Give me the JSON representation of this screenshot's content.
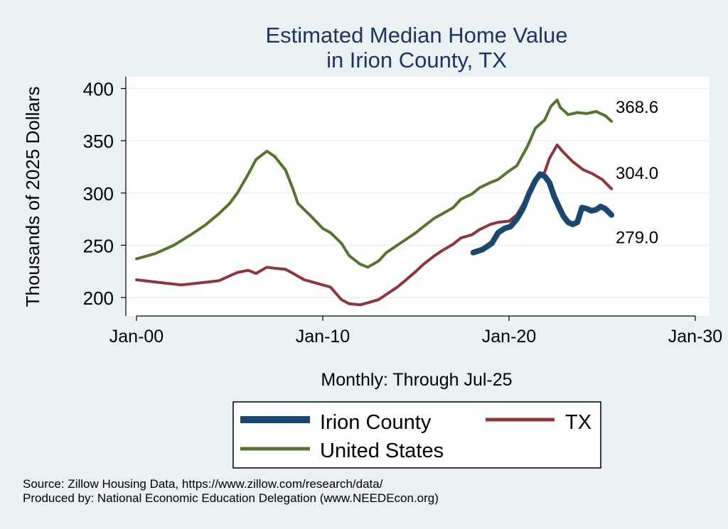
{
  "chart_data": {
    "type": "line",
    "title": [
      "Estimated Median Home Value",
      "in Irion County, TX"
    ],
    "xlabel": "Monthly: Through Jul-25",
    "ylabel": "Thousands of 2025 Dollars",
    "x_range": [
      "2000-01",
      "2030-01"
    ],
    "ylim": [
      195,
      410
    ],
    "x_ticks": [
      "Jan-00",
      "Jan-10",
      "Jan-20",
      "Jan-30"
    ],
    "y_ticks": [
      200,
      250,
      300,
      350,
      400
    ],
    "grid": true,
    "legend_position": "bottom",
    "series": [
      {
        "name": "Irion County",
        "color": "#1a476f",
        "end_label": "279.0",
        "points": [
          [
            "2018-02",
            243
          ],
          [
            "2018-08",
            246
          ],
          [
            "2019-02",
            252
          ],
          [
            "2019-06",
            262
          ],
          [
            "2019-10",
            266
          ],
          [
            "2020-02",
            268
          ],
          [
            "2020-06",
            275
          ],
          [
            "2020-10",
            285
          ],
          [
            "2021-02",
            300
          ],
          [
            "2021-06",
            312
          ],
          [
            "2021-09",
            318
          ],
          [
            "2021-12",
            316
          ],
          [
            "2022-03",
            310
          ],
          [
            "2022-06",
            297
          ],
          [
            "2022-09",
            287
          ],
          [
            "2022-12",
            278
          ],
          [
            "2023-03",
            272
          ],
          [
            "2023-06",
            270
          ],
          [
            "2023-09",
            272
          ],
          [
            "2023-12",
            286
          ],
          [
            "2024-03",
            285
          ],
          [
            "2024-06",
            283
          ],
          [
            "2024-09",
            284
          ],
          [
            "2024-12",
            287
          ],
          [
            "2025-03",
            285
          ],
          [
            "2025-07",
            279
          ]
        ]
      },
      {
        "name": "TX",
        "color": "#90353b",
        "end_label": "304.0",
        "points": [
          [
            "2000-01",
            217
          ],
          [
            "2001-06",
            214
          ],
          [
            "2002-06",
            212
          ],
          [
            "2003-06",
            214
          ],
          [
            "2004-06",
            216
          ],
          [
            "2005-06",
            224
          ],
          [
            "2006-01",
            226
          ],
          [
            "2006-06",
            223
          ],
          [
            "2007-01",
            229
          ],
          [
            "2007-06",
            228
          ],
          [
            "2008-01",
            227
          ],
          [
            "2008-06",
            223
          ],
          [
            "2009-01",
            217
          ],
          [
            "2009-06",
            215
          ],
          [
            "2010-01",
            212
          ],
          [
            "2010-06",
            210
          ],
          [
            "2011-01",
            198
          ],
          [
            "2011-06",
            194
          ],
          [
            "2012-01",
            193
          ],
          [
            "2012-06",
            195
          ],
          [
            "2013-01",
            198
          ],
          [
            "2013-06",
            203
          ],
          [
            "2014-01",
            210
          ],
          [
            "2014-06",
            216
          ],
          [
            "2015-01",
            225
          ],
          [
            "2015-06",
            232
          ],
          [
            "2016-01",
            240
          ],
          [
            "2016-06",
            245
          ],
          [
            "2017-01",
            251
          ],
          [
            "2017-06",
            257
          ],
          [
            "2018-01",
            260
          ],
          [
            "2018-06",
            265
          ],
          [
            "2019-01",
            270
          ],
          [
            "2019-06",
            272
          ],
          [
            "2020-01",
            273
          ],
          [
            "2020-06",
            279
          ],
          [
            "2021-01",
            297
          ],
          [
            "2021-06",
            314
          ],
          [
            "2021-12",
            320
          ],
          [
            "2022-03",
            333
          ],
          [
            "2022-08",
            346
          ],
          [
            "2022-12",
            339
          ],
          [
            "2023-06",
            330
          ],
          [
            "2024-01",
            322
          ],
          [
            "2024-06",
            319
          ],
          [
            "2025-01",
            313
          ],
          [
            "2025-07",
            304
          ]
        ]
      },
      {
        "name": "United States",
        "color": "#55752f",
        "end_label": "368.6",
        "points": [
          [
            "2000-01",
            237
          ],
          [
            "2001-01",
            242
          ],
          [
            "2002-01",
            250
          ],
          [
            "2003-01",
            261
          ],
          [
            "2003-09",
            269
          ],
          [
            "2004-06",
            280
          ],
          [
            "2005-01",
            290
          ],
          [
            "2005-06",
            300
          ],
          [
            "2006-01",
            318
          ],
          [
            "2006-06",
            332
          ],
          [
            "2007-01",
            340
          ],
          [
            "2007-06",
            335
          ],
          [
            "2008-01",
            322
          ],
          [
            "2008-06",
            303
          ],
          [
            "2008-09",
            290
          ],
          [
            "2009-06",
            277
          ],
          [
            "2010-01",
            266
          ],
          [
            "2010-06",
            262
          ],
          [
            "2011-01",
            252
          ],
          [
            "2011-06",
            240
          ],
          [
            "2012-01",
            232
          ],
          [
            "2012-06",
            229
          ],
          [
            "2013-01",
            235
          ],
          [
            "2013-06",
            243
          ],
          [
            "2014-01",
            250
          ],
          [
            "2014-06",
            255
          ],
          [
            "2015-01",
            262
          ],
          [
            "2015-06",
            268
          ],
          [
            "2016-01",
            276
          ],
          [
            "2016-06",
            280
          ],
          [
            "2017-01",
            286
          ],
          [
            "2017-06",
            294
          ],
          [
            "2018-01",
            299
          ],
          [
            "2018-06",
            305
          ],
          [
            "2019-01",
            310
          ],
          [
            "2019-06",
            313
          ],
          [
            "2019-12",
            320
          ],
          [
            "2020-06",
            326
          ],
          [
            "2021-01",
            345
          ],
          [
            "2021-06",
            362
          ],
          [
            "2021-12",
            370
          ],
          [
            "2022-04",
            383
          ],
          [
            "2022-08",
            389
          ],
          [
            "2022-10",
            382
          ],
          [
            "2023-03",
            375
          ],
          [
            "2023-09",
            377
          ],
          [
            "2024-03",
            376
          ],
          [
            "2024-09",
            378
          ],
          [
            "2025-03",
            374
          ],
          [
            "2025-07",
            368.6
          ]
        ]
      }
    ]
  },
  "source_line1": "Source: Zillow Housing Data, https://www.zillow.com/research/data/",
  "source_line2": "Produced by: National Economic Education Delegation (www.NEEDEcon.org)"
}
